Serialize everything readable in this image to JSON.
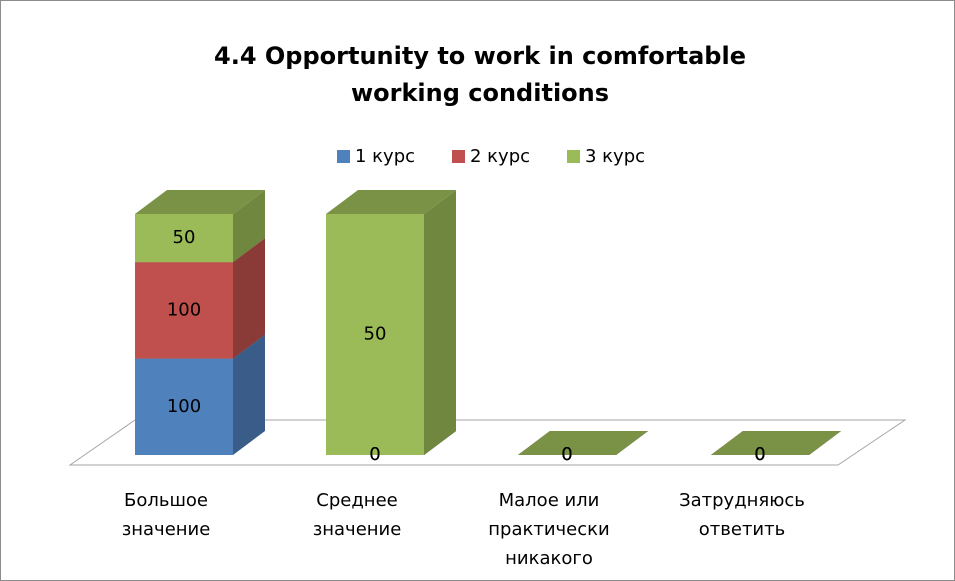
{
  "chart_data": {
    "type": "bar3d",
    "stacking": "percent",
    "title": "4.4 Opportunity to work in comfortable working conditions",
    "categories": [
      "Большое значение",
      "Среднее значение",
      "Малое или практически никакого",
      "Затрудняюсь ответить"
    ],
    "series": [
      {
        "name": "1 курс",
        "color": "#4f81bd",
        "values": [
          100,
          0,
          0,
          0
        ]
      },
      {
        "name": "2 курс",
        "color": "#c0504d",
        "values": [
          100,
          0,
          0,
          0
        ]
      },
      {
        "name": "3 курс",
        "color": "#9bbb59",
        "values": [
          50,
          50,
          0,
          0
        ]
      }
    ],
    "legend": "top",
    "data_labels": true
  }
}
